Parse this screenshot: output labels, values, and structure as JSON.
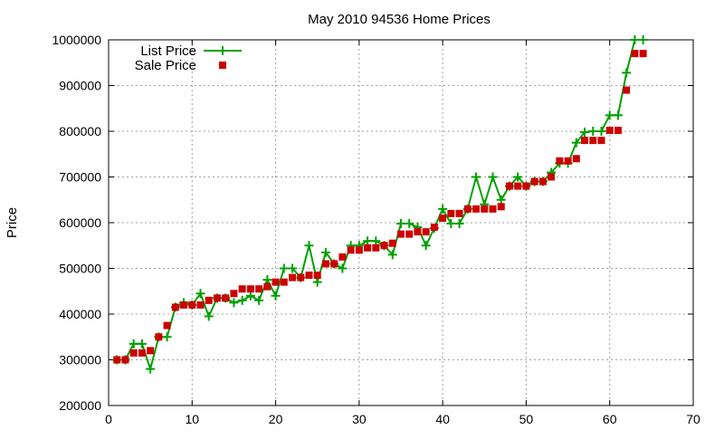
{
  "chart_data": {
    "type": "line",
    "title": "May 2010 94536 Home Prices",
    "xlabel": "",
    "ylabel": "Price",
    "xlim": [
      0,
      70
    ],
    "ylim": [
      200000,
      1000000
    ],
    "xticks": [
      0,
      10,
      20,
      30,
      40,
      50,
      60,
      70
    ],
    "yticks": [
      200000,
      300000,
      400000,
      500000,
      600000,
      700000,
      800000,
      900000,
      1000000
    ],
    "grid": true,
    "legend_position": "top-left",
    "x": [
      1,
      2,
      3,
      4,
      5,
      6,
      7,
      8,
      9,
      10,
      11,
      12,
      13,
      14,
      15,
      16,
      17,
      18,
      19,
      20,
      21,
      22,
      23,
      24,
      25,
      26,
      27,
      28,
      29,
      30,
      31,
      32,
      33,
      34,
      35,
      36,
      37,
      38,
      39,
      40,
      41,
      42,
      43,
      44,
      45,
      46,
      47,
      48,
      49,
      50,
      51,
      52,
      53,
      54,
      55,
      56,
      57,
      58,
      59,
      60,
      61,
      62,
      63,
      64
    ],
    "series": [
      {
        "name": "List Price",
        "style": "line+cross",
        "color": "#00a000",
        "values": [
          300000,
          300000,
          335000,
          335000,
          280000,
          350000,
          350000,
          415000,
          425000,
          420000,
          445000,
          395000,
          435000,
          435000,
          425000,
          430000,
          440000,
          430000,
          475000,
          440000,
          500000,
          500000,
          480000,
          550000,
          470000,
          535000,
          510000,
          500000,
          550000,
          550000,
          560000,
          560000,
          550000,
          530000,
          598000,
          598000,
          590000,
          550000,
          588000,
          630000,
          598000,
          598000,
          630000,
          700000,
          640000,
          700000,
          650000,
          680000,
          700000,
          680000,
          690000,
          690000,
          710000,
          730000,
          730000,
          775000,
          798000,
          800000,
          800000,
          835000,
          835000,
          928000,
          1000000,
          1000000
        ]
      },
      {
        "name": "Sale Price",
        "style": "square",
        "color": "#cc0000",
        "values": [
          300000,
          300000,
          315000,
          315000,
          320000,
          350000,
          375000,
          415000,
          420000,
          420000,
          420000,
          430000,
          435000,
          435000,
          445000,
          455000,
          455000,
          455000,
          460000,
          470000,
          470000,
          480000,
          480000,
          485000,
          485000,
          510000,
          510000,
          525000,
          540000,
          540000,
          545000,
          545000,
          550000,
          555000,
          575000,
          575000,
          580000,
          580000,
          590000,
          610000,
          620000,
          620000,
          630000,
          630000,
          630000,
          630000,
          635000,
          680000,
          680000,
          680000,
          690000,
          690000,
          700000,
          735000,
          735000,
          740000,
          780000,
          780000,
          780000,
          802000,
          802000,
          890000,
          970000,
          970000
        ]
      }
    ]
  }
}
